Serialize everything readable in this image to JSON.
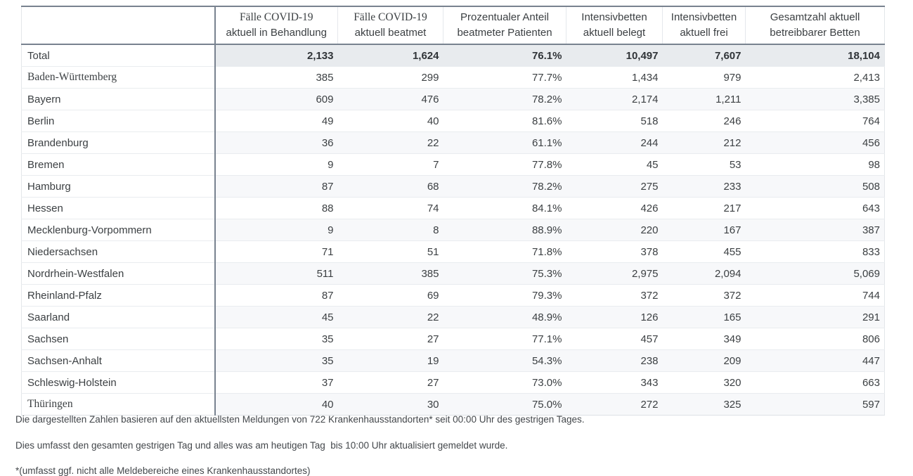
{
  "colors": {
    "dark_border": "#78828f",
    "light_border": "#e9ecef",
    "outer_border": "#e3e6ea",
    "total_row_bg": "#e8ebee",
    "stripe_bg": "#f7f8fa",
    "text": "#3c4043"
  },
  "table": {
    "columns": [
      {
        "line1": "",
        "line2": ""
      },
      {
        "line1": "Fälle COVID-19",
        "line2": "aktuell in Behandlung"
      },
      {
        "line1": "Fälle COVID-19",
        "line2": "aktuell beatmet"
      },
      {
        "line1": "Prozentualer Anteil",
        "line2": "beatmeter Patienten"
      },
      {
        "line1": "Intensivbetten",
        "line2": "aktuell belegt"
      },
      {
        "line1": "Intensivbetten",
        "line2": "aktuell frei"
      },
      {
        "line1": "Gesamtzahl aktuell",
        "line2": "betreibbarer Betten"
      }
    ],
    "rows": [
      {
        "name": "Total",
        "values": [
          "2,133",
          "1,624",
          "76.1%",
          "10,497",
          "7,607",
          "18,104"
        ]
      },
      {
        "name": "Baden-Württemberg",
        "values": [
          "385",
          "299",
          "77.7%",
          "1,434",
          "979",
          "2,413"
        ]
      },
      {
        "name": "Bayern",
        "values": [
          "609",
          "476",
          "78.2%",
          "2,174",
          "1,211",
          "3,385"
        ]
      },
      {
        "name": "Berlin",
        "values": [
          "49",
          "40",
          "81.6%",
          "518",
          "246",
          "764"
        ]
      },
      {
        "name": "Brandenburg",
        "values": [
          "36",
          "22",
          "61.1%",
          "244",
          "212",
          "456"
        ]
      },
      {
        "name": "Bremen",
        "values": [
          "9",
          "7",
          "77.8%",
          "45",
          "53",
          "98"
        ]
      },
      {
        "name": "Hamburg",
        "values": [
          "87",
          "68",
          "78.2%",
          "275",
          "233",
          "508"
        ]
      },
      {
        "name": "Hessen",
        "values": [
          "88",
          "74",
          "84.1%",
          "426",
          "217",
          "643"
        ]
      },
      {
        "name": "Mecklenburg-Vorpommern",
        "values": [
          "9",
          "8",
          "88.9%",
          "220",
          "167",
          "387"
        ]
      },
      {
        "name": "Niedersachsen",
        "values": [
          "71",
          "51",
          "71.8%",
          "378",
          "455",
          "833"
        ]
      },
      {
        "name": "Nordrhein-Westfalen",
        "values": [
          "511",
          "385",
          "75.3%",
          "2,975",
          "2,094",
          "5,069"
        ]
      },
      {
        "name": "Rheinland-Pfalz",
        "values": [
          "87",
          "69",
          "79.3%",
          "372",
          "372",
          "744"
        ]
      },
      {
        "name": "Saarland",
        "values": [
          "45",
          "22",
          "48.9%",
          "126",
          "165",
          "291"
        ]
      },
      {
        "name": "Sachsen",
        "values": [
          "35",
          "27",
          "77.1%",
          "457",
          "349",
          "806"
        ]
      },
      {
        "name": "Sachsen-Anhalt",
        "values": [
          "35",
          "19",
          "54.3%",
          "238",
          "209",
          "447"
        ]
      },
      {
        "name": "Schleswig-Holstein",
        "values": [
          "37",
          "27",
          "73.0%",
          "343",
          "320",
          "663"
        ]
      },
      {
        "name": "Thüringen",
        "values": [
          "40",
          "30",
          "75.0%",
          "272",
          "325",
          "597"
        ]
      }
    ]
  },
  "footnotes": [
    "Die dargestellten Zahlen basieren auf den aktuellsten Meldungen von 722 Krankenhausstandorten* seit 00:00 Uhr des gestrigen Tages.",
    "Dies umfasst den gesamten gestrigen Tag und alles was am heutigen Tag  bis 10:00 Uhr aktualisiert gemeldet wurde.",
    "*(umfasst ggf. nicht alle Meldebereiche eines Krankenhausstandortes)"
  ]
}
